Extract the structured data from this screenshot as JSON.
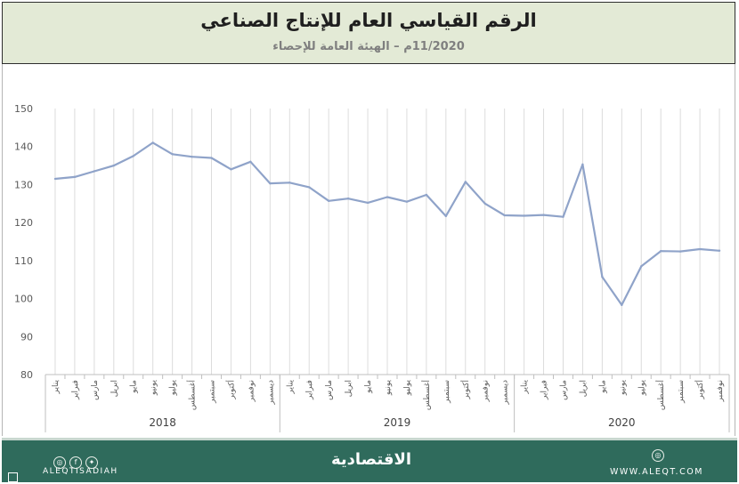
{
  "header": {
    "title": "الرقم القياسي العام للإنتاج الصناعي",
    "subtitle": "11/2020م – الهيئة العامة للإحصاء"
  },
  "chart_data": {
    "type": "line",
    "title": "",
    "xlabel": "",
    "ylabel": "",
    "ylim": [
      80,
      150
    ],
    "yticks": [
      80,
      90,
      100,
      110,
      120,
      130,
      140,
      150
    ],
    "grid": "vertical",
    "legend": "none",
    "line_color": "#8fa3c9",
    "years": [
      {
        "label": "2018",
        "months": 12
      },
      {
        "label": "2019",
        "months": 12
      },
      {
        "label": "2020",
        "months": 11
      }
    ],
    "categories": [
      "يناير",
      "فبراير",
      "مارس",
      "ابريل",
      "مايو",
      "يونيو",
      "يوليو",
      "أغسطس",
      "سبتمبر",
      "أكتوبر",
      "نوفمبر",
      "ديسمبر",
      "يناير",
      "فبراير",
      "مارس",
      "ابريل",
      "مايو",
      "يونيو",
      "يوليو",
      "أغسطس",
      "سبتمبر",
      "أكتوبر",
      "نوفمبر",
      "ديسمبر",
      "يناير",
      "فبراير",
      "مارس",
      "ابريل",
      "مايو",
      "يونيو",
      "يوليو",
      "أغسطس",
      "سبتمبر",
      "أكتوبر",
      "نوفمبر"
    ],
    "values": [
      131.5,
      132.0,
      133.5,
      135.0,
      137.5,
      141.0,
      138.0,
      137.3,
      137.0,
      134.0,
      136.0,
      130.3,
      130.5,
      129.3,
      125.7,
      126.3,
      125.2,
      126.7,
      125.5,
      127.3,
      121.7,
      130.7,
      125.0,
      121.9,
      121.8,
      122.0,
      121.5,
      135.3,
      105.7,
      98.3,
      108.5,
      112.5,
      112.4,
      113.0,
      112.6
    ]
  },
  "footer": {
    "social_icons": [
      "instagram-icon",
      "facebook-icon",
      "twitter-icon"
    ],
    "handle": "ALEQTISADIAH",
    "logo": "الاقتصادية",
    "website": "WWW.ALEQT.COM"
  }
}
